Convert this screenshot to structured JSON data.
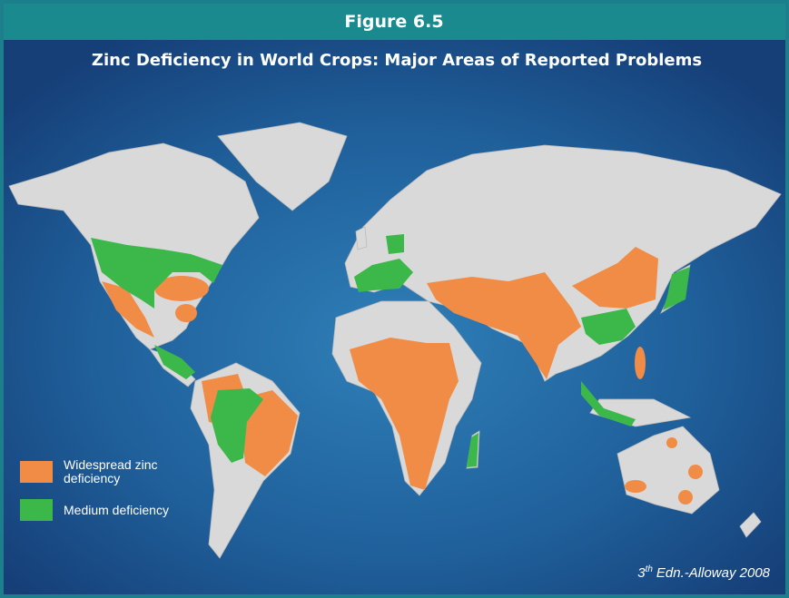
{
  "header": {
    "figure": "Figure 6.5",
    "title": "Zinc Deficiency in World Crops: Major Areas of Reported Problems"
  },
  "legend": {
    "items": [
      {
        "label": "Widespread zinc deficiency",
        "color": "#f08c46"
      },
      {
        "label": "Medium deficiency",
        "color": "#3cb84a"
      }
    ]
  },
  "credit": {
    "number": "3",
    "suffix": "th",
    "text": "Edn.-Alloway 2008"
  }
}
